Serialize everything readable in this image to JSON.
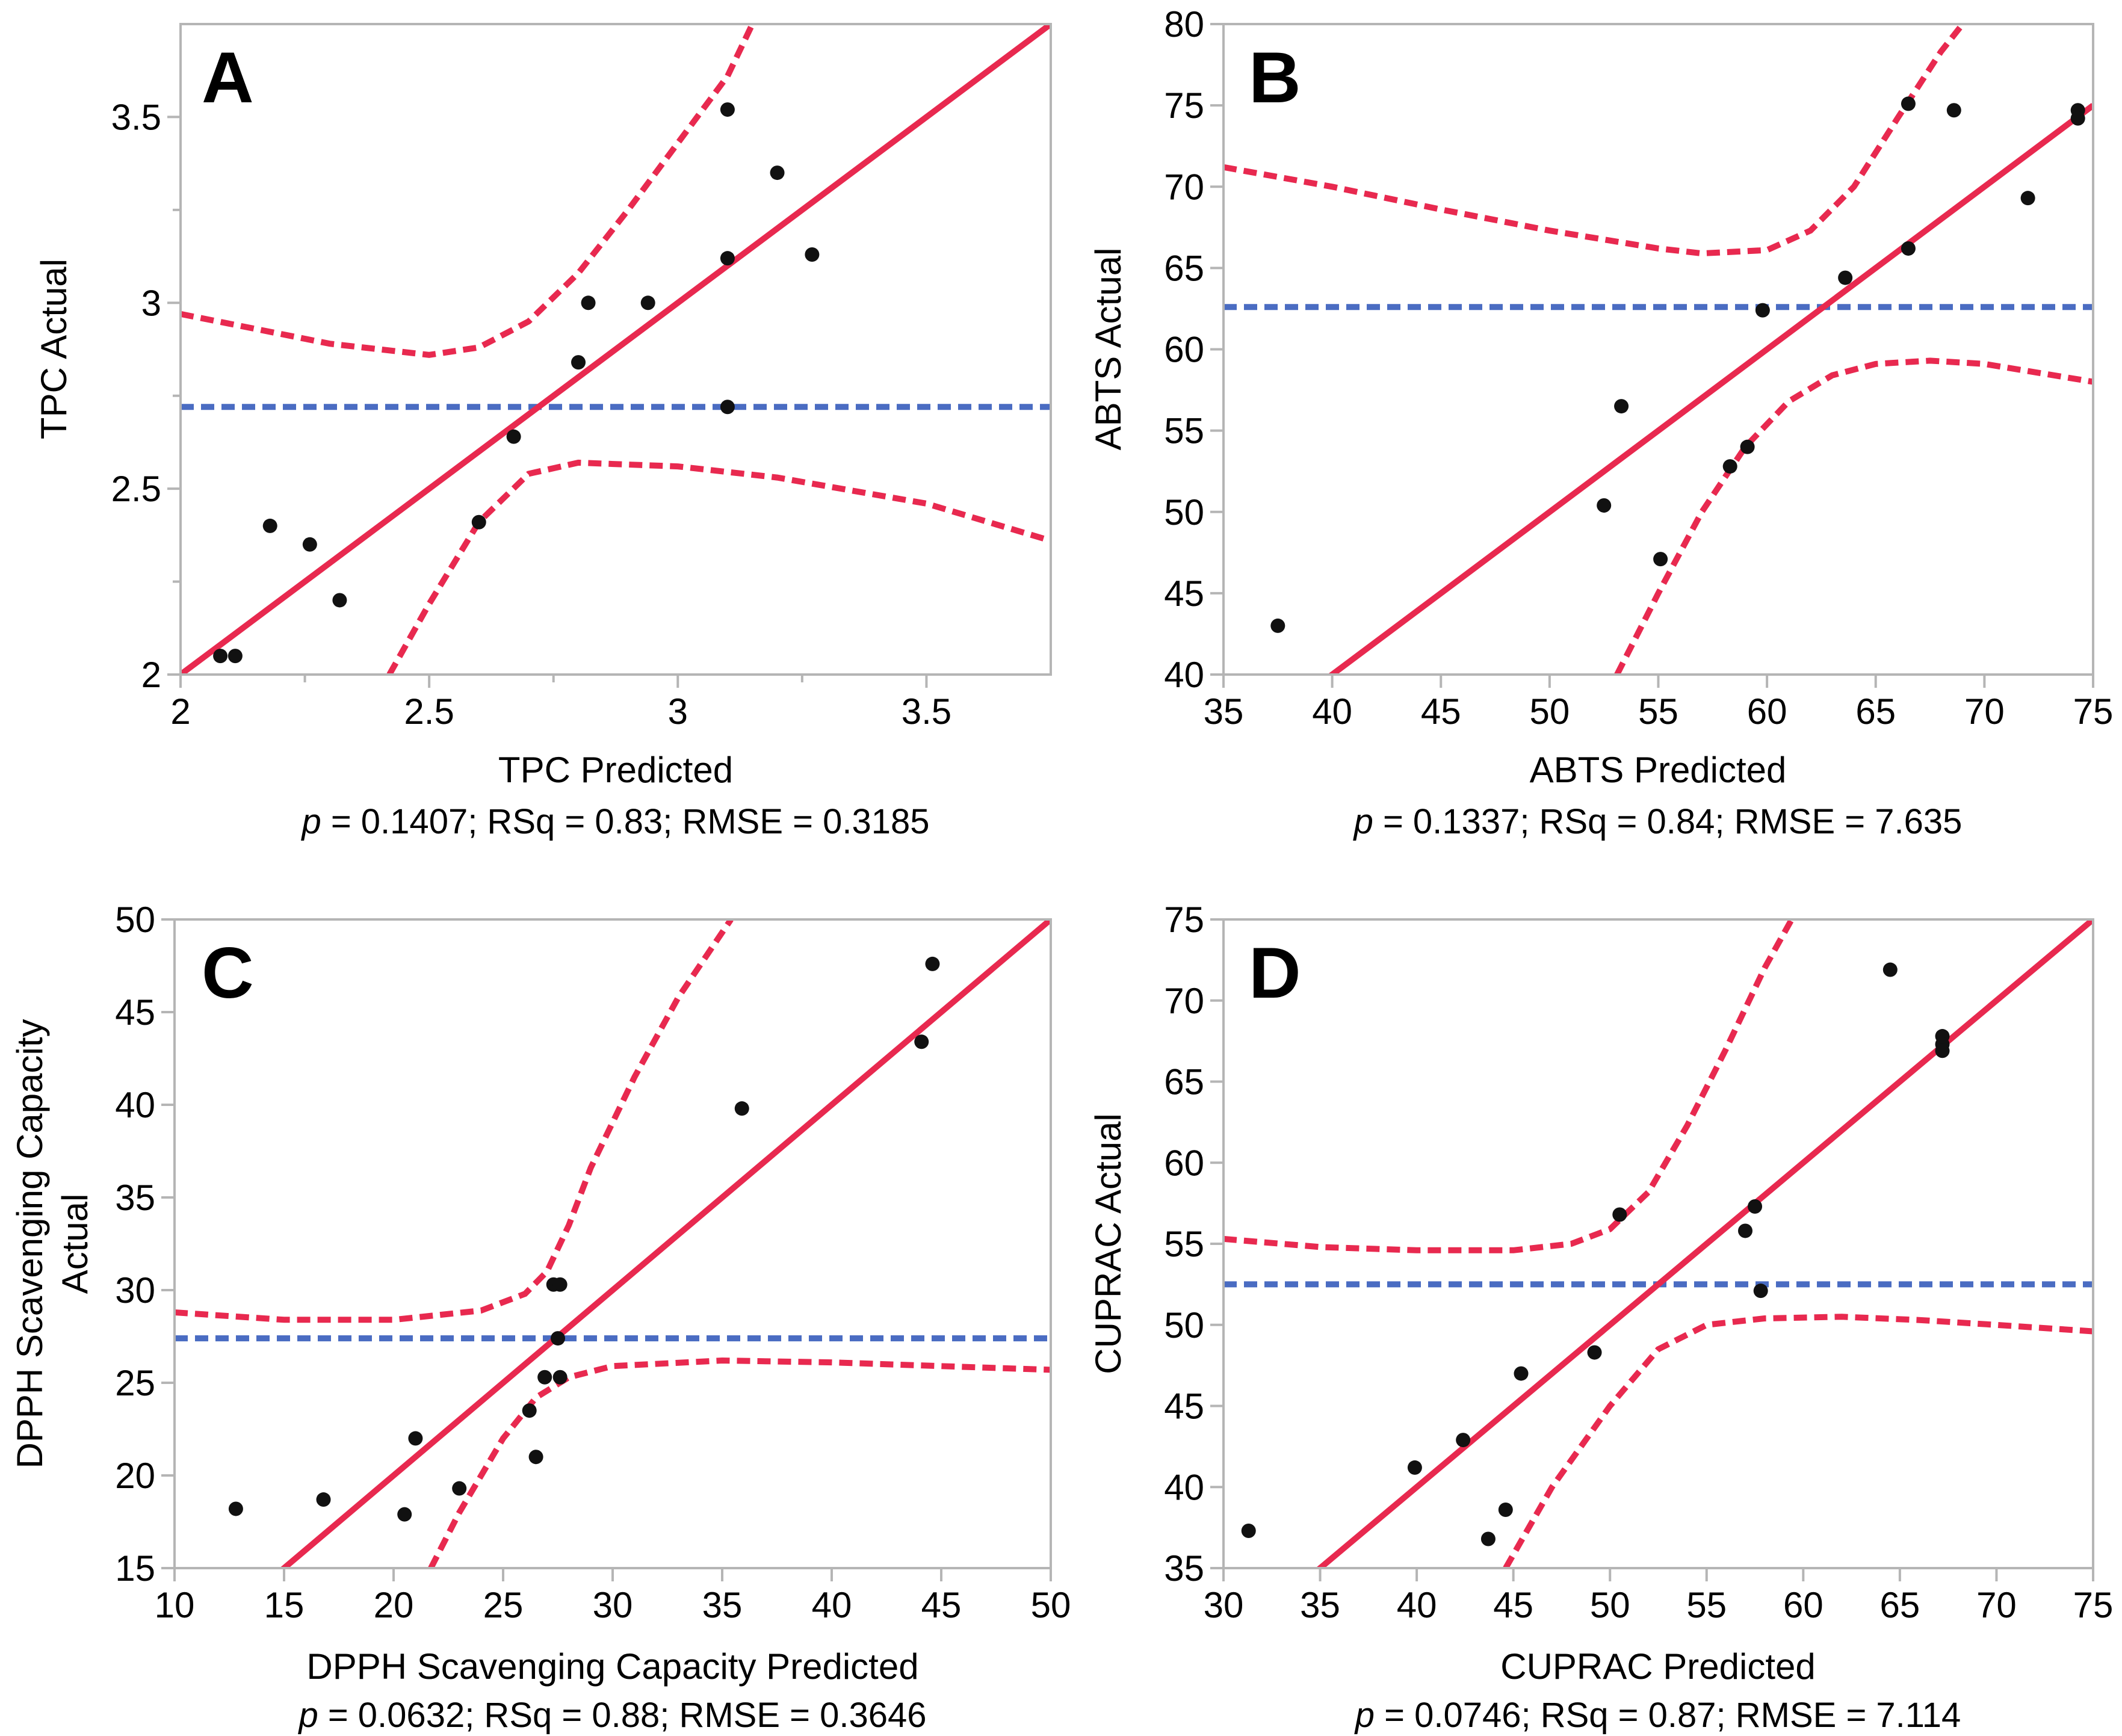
{
  "colors": {
    "fit": "#e8294f",
    "mean": "#4a6cc2",
    "point": "#111111",
    "frame": "#b5b5b5"
  },
  "chart_data": [
    {
      "id": "A",
      "type": "scatter",
      "letter": "A",
      "xlabel": "TPC Predicted",
      "ylabel": [
        "TPC Actual"
      ],
      "stats": {
        "p_symbol": "p",
        "rest": " = 0.1407; RSq = 0.83; RMSE = 0.3185"
      },
      "xlim": [
        2,
        3.75
      ],
      "ylim": [
        2,
        3.75
      ],
      "xticks": [
        2,
        2.5,
        3,
        3.5
      ],
      "xtick_labels": [
        "2",
        "2.5",
        "3",
        "3.5"
      ],
      "xminor": [
        2.25,
        2.75,
        3.25
      ],
      "yticks": [
        2,
        2.5,
        3,
        3.5
      ],
      "ytick_labels": [
        "2",
        "2.5",
        "3",
        "3.5"
      ],
      "yminor": [
        2.25,
        2.75,
        3.25
      ],
      "mean": 2.72,
      "fit": {
        "slope": 1,
        "intercept": 0
      },
      "upper": [
        [
          2,
          2.97
        ],
        [
          2.3,
          2.89
        ],
        [
          2.5,
          2.86
        ],
        [
          2.6,
          2.88
        ],
        [
          2.7,
          2.95
        ],
        [
          2.8,
          3.08
        ],
        [
          2.9,
          3.25
        ],
        [
          3.0,
          3.43
        ],
        [
          3.1,
          3.61
        ],
        [
          3.15,
          3.75
        ]
      ],
      "lower": [
        [
          2.42,
          2.0
        ],
        [
          2.5,
          2.19
        ],
        [
          2.6,
          2.41
        ],
        [
          2.7,
          2.54
        ],
        [
          2.8,
          2.57
        ],
        [
          3.0,
          2.56
        ],
        [
          3.2,
          2.53
        ],
        [
          3.5,
          2.46
        ],
        [
          3.75,
          2.36
        ]
      ],
      "points": [
        [
          2.08,
          2.05
        ],
        [
          2.11,
          2.05
        ],
        [
          2.18,
          2.4
        ],
        [
          2.26,
          2.35
        ],
        [
          2.32,
          2.2
        ],
        [
          2.6,
          2.41
        ],
        [
          2.67,
          2.64
        ],
        [
          2.8,
          2.84
        ],
        [
          2.82,
          3.0
        ],
        [
          2.94,
          3.0
        ],
        [
          3.1,
          3.12
        ],
        [
          3.1,
          2.72
        ],
        [
          3.1,
          3.52
        ],
        [
          3.2,
          3.35
        ],
        [
          3.27,
          3.13
        ]
      ]
    },
    {
      "id": "B",
      "type": "scatter",
      "letter": "B",
      "xlabel": "ABTS Predicted",
      "ylabel": [
        "ABTS Actual"
      ],
      "stats": {
        "p_symbol": "p",
        "rest": " = 0.1337; RSq = 0.84; RMSE = 7.635"
      },
      "xlim": [
        35,
        75
      ],
      "ylim": [
        40,
        80
      ],
      "xticks": [
        35,
        40,
        45,
        50,
        55,
        60,
        65,
        70,
        75
      ],
      "xtick_labels": [
        "35",
        "40",
        "45",
        "50",
        "55",
        "60",
        "65",
        "70",
        "75"
      ],
      "xminor": [],
      "yticks": [
        40,
        45,
        50,
        55,
        60,
        65,
        70,
        75,
        80
      ],
      "ytick_labels": [
        "40",
        "45",
        "50",
        "55",
        "60",
        "65",
        "70",
        "75",
        "80"
      ],
      "yminor": [],
      "mean": 62.6,
      "fit": {
        "slope": 1,
        "intercept": 0
      },
      "upper": [
        [
          35,
          71.2
        ],
        [
          40,
          70.0
        ],
        [
          45,
          68.6
        ],
        [
          50,
          67.3
        ],
        [
          55,
          66.2
        ],
        [
          57,
          65.9
        ],
        [
          60,
          66.1
        ],
        [
          62,
          67.3
        ],
        [
          64,
          70.0
        ],
        [
          66,
          74.2
        ],
        [
          68,
          78.3
        ],
        [
          69,
          80.0
        ]
      ],
      "lower": [
        [
          53.1,
          40.0
        ],
        [
          55,
          45.0
        ],
        [
          57,
          50.0
        ],
        [
          59,
          54.0
        ],
        [
          61,
          56.8
        ],
        [
          63,
          58.4
        ],
        [
          65,
          59.1
        ],
        [
          67.5,
          59.3
        ],
        [
          70,
          59.1
        ],
        [
          75,
          58.0
        ]
      ],
      "points": [
        [
          37.5,
          43.0
        ],
        [
          52.5,
          50.4
        ],
        [
          53.3,
          56.5
        ],
        [
          55.1,
          47.1
        ],
        [
          58.3,
          52.8
        ],
        [
          59.1,
          54.0
        ],
        [
          59.8,
          62.4
        ],
        [
          63.6,
          64.4
        ],
        [
          66.5,
          75.1
        ],
        [
          66.5,
          66.2
        ],
        [
          68.6,
          74.7
        ],
        [
          72.0,
          69.3
        ],
        [
          74.3,
          74.7
        ],
        [
          74.3,
          74.2
        ]
      ]
    },
    {
      "id": "C",
      "type": "scatter",
      "letter": "C",
      "xlabel": "DPPH Scavenging Capacity Predicted",
      "ylabel": [
        "DPPH Scavenging Capacity",
        "Actual"
      ],
      "stats": {
        "p_symbol": "p",
        "rest": " = 0.0632; RSq = 0.88; RMSE = 0.3646"
      },
      "xlim": [
        10,
        50
      ],
      "ylim": [
        15,
        50
      ],
      "xticks": [
        10,
        15,
        20,
        25,
        30,
        35,
        40,
        45,
        50
      ],
      "xtick_labels": [
        "10",
        "15",
        "20",
        "25",
        "30",
        "35",
        "40",
        "45",
        "50"
      ],
      "xminor": [],
      "yticks": [
        15,
        20,
        25,
        30,
        35,
        40,
        45,
        50
      ],
      "ytick_labels": [
        "15",
        "20",
        "25",
        "30",
        "35",
        "40",
        "45",
        "50"
      ],
      "yminor": [],
      "mean": 27.4,
      "fit": {
        "slope": 1,
        "intercept": 0
      },
      "upper": [
        [
          10,
          28.8
        ],
        [
          15,
          28.4
        ],
        [
          20,
          28.4
        ],
        [
          24,
          28.9
        ],
        [
          26,
          29.8
        ],
        [
          27,
          31.0
        ],
        [
          28,
          33.5
        ],
        [
          29,
          36.6
        ],
        [
          31,
          41.5
        ],
        [
          33,
          45.8
        ],
        [
          35,
          49.3
        ],
        [
          35.4,
          50.0
        ]
      ],
      "lower": [
        [
          21.7,
          15.0
        ],
        [
          23,
          18.0
        ],
        [
          25,
          22.0
        ],
        [
          26.5,
          24.2
        ],
        [
          28,
          25.3
        ],
        [
          30,
          25.9
        ],
        [
          35,
          26.2
        ],
        [
          40,
          26.1
        ],
        [
          45,
          25.9
        ],
        [
          50,
          25.7
        ]
      ],
      "points": [
        [
          12.8,
          18.2
        ],
        [
          16.8,
          18.7
        ],
        [
          20.5,
          17.9
        ],
        [
          21.0,
          22.0
        ],
        [
          23.0,
          19.3
        ],
        [
          26.2,
          23.5
        ],
        [
          26.5,
          21.0
        ],
        [
          26.9,
          25.3
        ],
        [
          27.3,
          30.3
        ],
        [
          27.6,
          30.3
        ],
        [
          27.5,
          27.4
        ],
        [
          27.6,
          25.3
        ],
        [
          35.9,
          39.8
        ],
        [
          44.1,
          43.4
        ],
        [
          44.6,
          47.6
        ]
      ]
    },
    {
      "id": "D",
      "type": "scatter",
      "letter": "D",
      "xlabel": "CUPRAC Predicted",
      "ylabel": [
        "CUPRAC Actual"
      ],
      "stats": {
        "p_symbol": "p",
        "rest": " = 0.0746; RSq = 0.87; RMSE = 7.114"
      },
      "xlim": [
        30,
        75
      ],
      "ylim": [
        35,
        75
      ],
      "xticks": [
        30,
        35,
        40,
        45,
        50,
        55,
        60,
        65,
        70,
        75
      ],
      "xtick_labels": [
        "30",
        "35",
        "40",
        "45",
        "50",
        "55",
        "60",
        "65",
        "70",
        "75"
      ],
      "xminor": [],
      "yticks": [
        35,
        40,
        45,
        50,
        55,
        60,
        65,
        70,
        75
      ],
      "ytick_labels": [
        "35",
        "40",
        "45",
        "50",
        "55",
        "60",
        "65",
        "70",
        "75"
      ],
      "yminor": [],
      "mean": 52.5,
      "fit": {
        "slope": 1,
        "intercept": 0
      },
      "upper": [
        [
          30,
          55.3
        ],
        [
          35,
          54.8
        ],
        [
          40,
          54.6
        ],
        [
          45,
          54.6
        ],
        [
          48,
          55.0
        ],
        [
          50,
          55.9
        ],
        [
          52,
          58.2
        ],
        [
          54,
          62.3
        ],
        [
          56,
          67.0
        ],
        [
          58,
          72.0
        ],
        [
          59.4,
          75.0
        ]
      ],
      "lower": [
        [
          44.6,
          35.0
        ],
        [
          47,
          40.0
        ],
        [
          50,
          45.0
        ],
        [
          52.5,
          48.5
        ],
        [
          55,
          50.0
        ],
        [
          58,
          50.4
        ],
        [
          62,
          50.5
        ],
        [
          66,
          50.3
        ],
        [
          70,
          50.0
        ],
        [
          75,
          49.6
        ]
      ],
      "points": [
        [
          31.3,
          37.3
        ],
        [
          39.9,
          41.2
        ],
        [
          42.4,
          42.9
        ],
        [
          43.7,
          36.8
        ],
        [
          44.6,
          38.6
        ],
        [
          45.4,
          47.0
        ],
        [
          49.2,
          48.3
        ],
        [
          50.5,
          56.8
        ],
        [
          57.0,
          55.8
        ],
        [
          57.5,
          57.3
        ],
        [
          57.8,
          52.1
        ],
        [
          64.5,
          71.9
        ],
        [
          67.2,
          67.8
        ],
        [
          67.2,
          67.3
        ],
        [
          67.2,
          66.9
        ]
      ]
    }
  ]
}
